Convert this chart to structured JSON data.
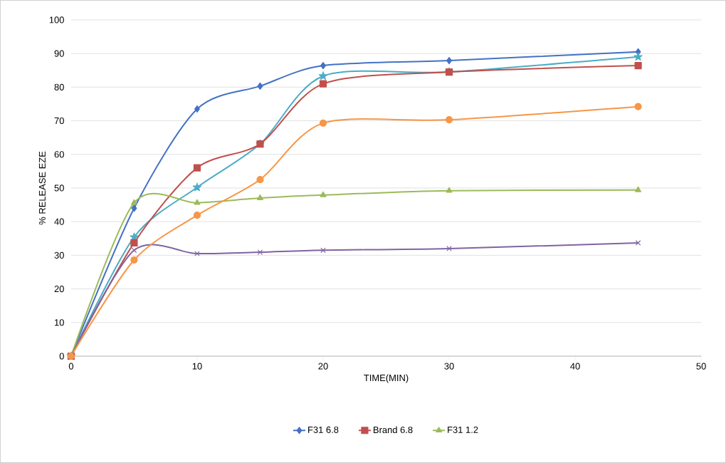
{
  "chart_data": {
    "type": "line",
    "xlabel": "TIME(MIN)",
    "ylabel": "% RELEASE EZE",
    "x": [
      0,
      5,
      10,
      15,
      20,
      30,
      45
    ],
    "xlim": [
      0,
      50
    ],
    "xticks": [
      0,
      10,
      20,
      30,
      40,
      50
    ],
    "ylim": [
      0,
      100
    ],
    "yticks": [
      0,
      10,
      20,
      30,
      40,
      50,
      60,
      70,
      80,
      90,
      100
    ],
    "grid": "y",
    "legend": "bottom",
    "series": [
      {
        "name": "F31 6.8",
        "color": "#4472c4",
        "marker": "diamond",
        "values": [
          0,
          44,
          73.5,
          80.3,
          86.4,
          87.9,
          90.5
        ]
      },
      {
        "color": "#4bacc6",
        "marker": "star",
        "values": [
          0,
          35.4,
          50.2,
          63.1,
          83.3,
          84.5,
          89
        ]
      },
      {
        "name": "Brand 6.8",
        "color": "#c0504d",
        "marker": "square",
        "values": [
          0,
          33.7,
          56,
          63.1,
          81,
          84.5,
          86.4
        ]
      },
      {
        "name": "F31 1.2",
        "color": "#9bbb59",
        "marker": "triangle",
        "values": [
          0,
          45.6,
          45.6,
          47,
          47.9,
          49.2,
          49.4
        ]
      },
      {
        "color": "#8064a2",
        "marker": "cross",
        "values": [
          0,
          31.5,
          30.5,
          30.9,
          31.5,
          32,
          33.7
        ]
      },
      {
        "color": "#f79646",
        "marker": "circle",
        "values": [
          0,
          28.6,
          41.9,
          52.5,
          69.3,
          70.3,
          74.2
        ]
      }
    ]
  }
}
